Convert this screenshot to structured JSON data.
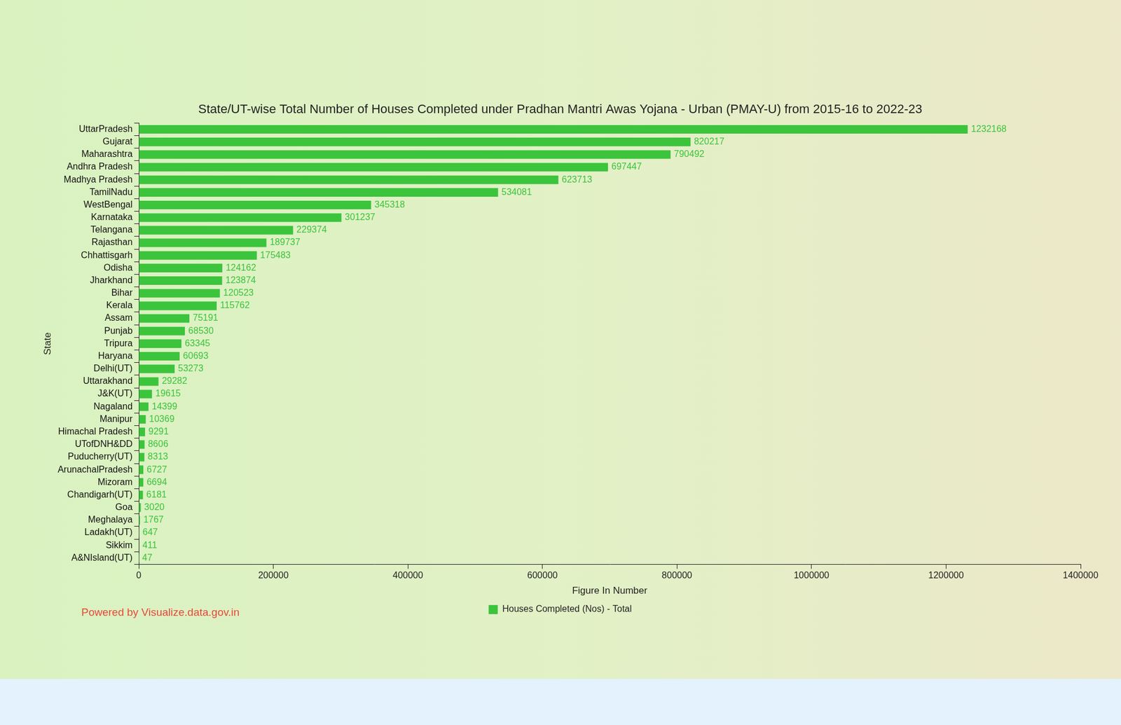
{
  "chart_data": {
    "type": "bar",
    "orientation": "horizontal",
    "title": "State/UT-wise Total Number of Houses Completed under Pradhan Mantri Awas Yojana - Urban (PMAY-U) from 2015-16 to 2022-23",
    "x_label": "Figure In Number",
    "y_label": "State",
    "annotations": [
      "Powered by Visualize.data.gov.in"
    ],
    "categories": [
      "UttarPradesh",
      "Gujarat",
      "Maharashtra",
      "Andhra Pradesh",
      "Madhya Pradesh",
      "TamilNadu",
      "WestBengal",
      "Karnataka",
      "Telangana",
      "Rajasthan",
      "Chhattisgarh",
      "Odisha",
      "Jharkhand",
      "Bihar",
      "Kerala",
      "Assam",
      "Punjab",
      "Tripura",
      "Haryana",
      "Delhi(UT)",
      "Uttarakhand",
      "J&K(UT)",
      "Nagaland",
      "Manipur",
      "Himachal Pradesh",
      "UTofDNH&DD",
      "Puducherry(UT)",
      "ArunachalPradesh",
      "Mizoram",
      "Chandigarh(UT)",
      "Goa",
      "Meghalaya",
      "Ladakh(UT)",
      "Sikkim",
      "A&NIsland(UT)"
    ],
    "series": [
      {
        "name": "Houses Completed (Nos) - Total",
        "color": "#3cc43c",
        "values": [
          1232168,
          820217,
          790492,
          697447,
          623713,
          534081,
          345318,
          301237,
          229374,
          189737,
          175483,
          124162,
          123874,
          120523,
          115762,
          75191,
          68530,
          63345,
          60693,
          53273,
          29282,
          19615,
          14399,
          10369,
          9291,
          8606,
          8313,
          6727,
          6694,
          6181,
          3020,
          1767,
          647,
          411,
          47
        ]
      }
    ],
    "xlim": [
      0,
      1400000
    ],
    "xticks": [
      0,
      200000,
      400000,
      600000,
      800000,
      1000000,
      1200000,
      1400000
    ],
    "grid": false,
    "legend": "bottom",
    "data_labels": true
  }
}
